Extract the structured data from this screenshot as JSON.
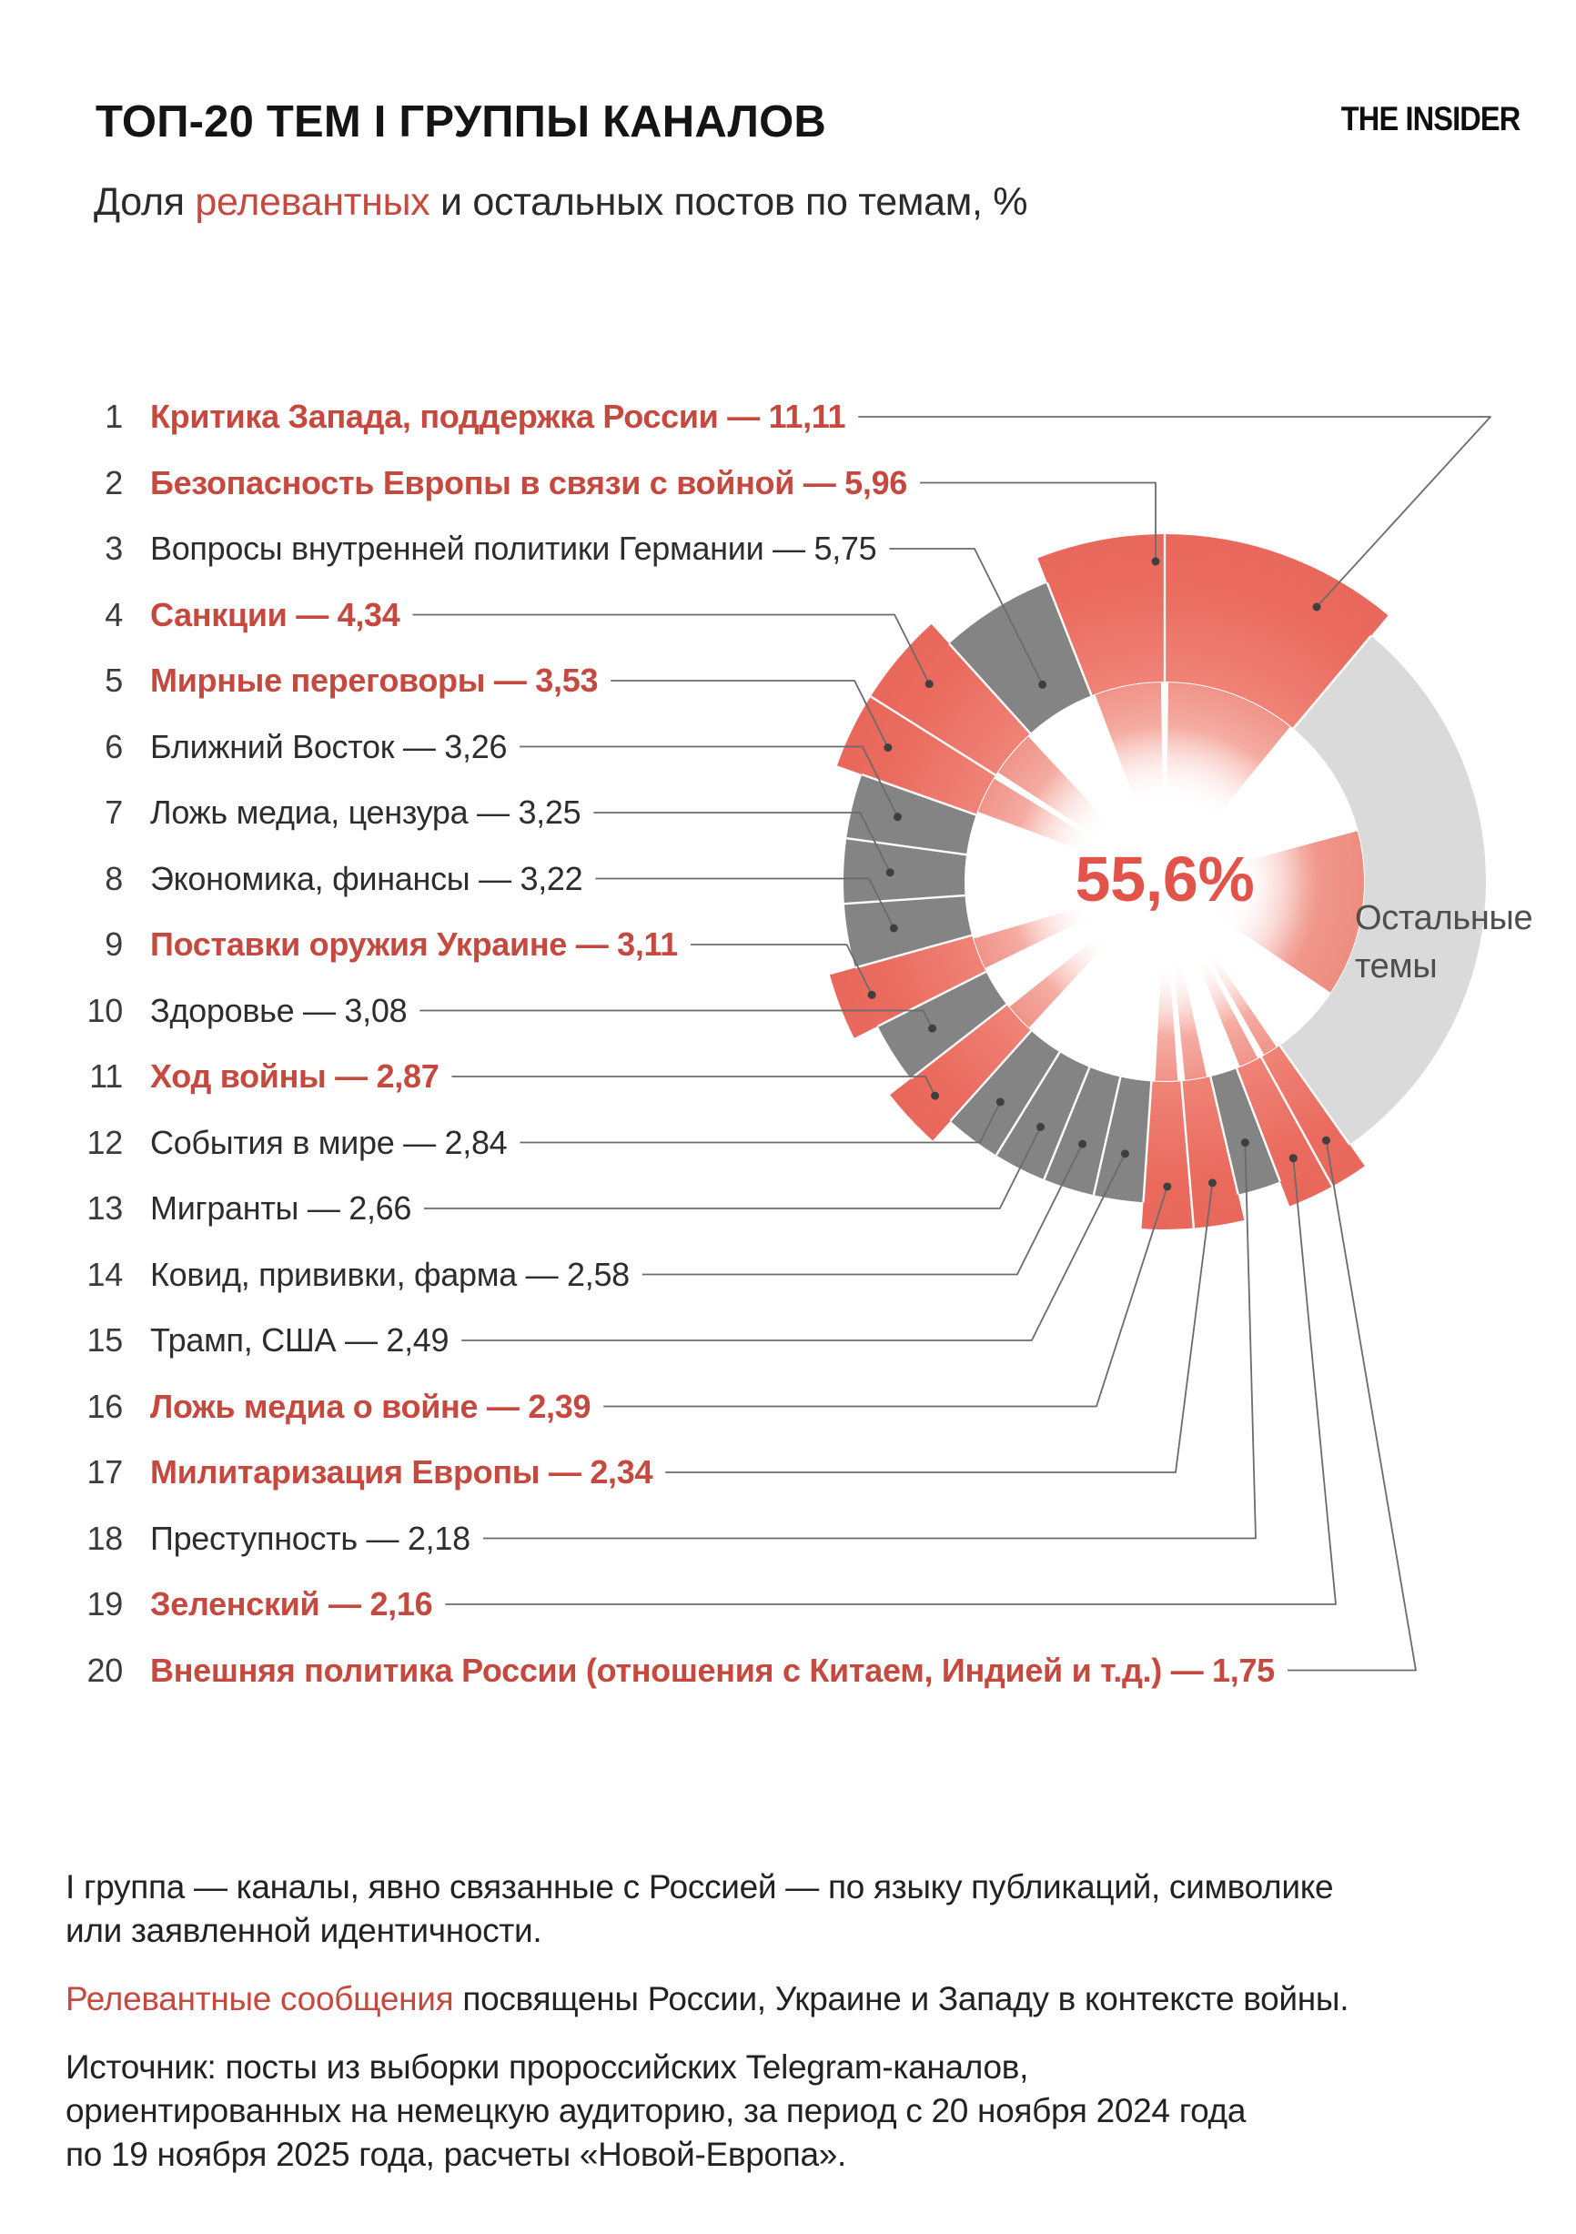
{
  "header": {
    "title": "ТОП-20 ТЕМ I ГРУППЫ КАНАЛОВ",
    "brand": "THE INSIDER",
    "subtitle": {
      "prefix": "Доля ",
      "highlight": "релевантных",
      "suffix": " и остальных постов по темам, %"
    }
  },
  "colors": {
    "relevant_red_text": "#c5493e",
    "center_label_red": "#e2544a",
    "sector_red": "#ea6a5e",
    "sector_gray": "#848484",
    "sector_rest_gray": "#dadadb",
    "leader_line": "#6b6b6b",
    "leader_dot": "#3f3f3f"
  },
  "chart_data": {
    "type": "pie",
    "variant": "donut-with-callouts",
    "title": "ТОП-20 ТЕМ I ГРУППЫ КАНАЛОВ",
    "subtitle": "Доля релевантных и остальных постов по темам, %",
    "center_label": "55,6%",
    "legend_position": "left-list-with-leader-lines",
    "rest_sector": {
      "label": "Остальные темы",
      "label_lines": [
        "Остальные",
        "темы"
      ]
    },
    "topics": [
      {
        "rank": 1,
        "label": "Критика Запада, поддержка России",
        "value": 11.11,
        "display": "11,11",
        "relevant": true
      },
      {
        "rank": 2,
        "label": "Безопасность Европы в связи с войной",
        "value": 5.96,
        "display": "5,96",
        "relevant": true
      },
      {
        "rank": 3,
        "label": "Вопросы внутренней политики Германии",
        "value": 5.75,
        "display": "5,75",
        "relevant": false
      },
      {
        "rank": 4,
        "label": "Санкции",
        "value": 4.34,
        "display": "4,34",
        "relevant": true
      },
      {
        "rank": 5,
        "label": "Мирные переговоры",
        "value": 3.53,
        "display": "3,53",
        "relevant": true
      },
      {
        "rank": 6,
        "label": "Ближний Восток",
        "value": 3.26,
        "display": "3,26",
        "relevant": false
      },
      {
        "rank": 7,
        "label": "Ложь медиа, цензура",
        "value": 3.25,
        "display": "3,25",
        "relevant": false
      },
      {
        "rank": 8,
        "label": "Экономика, финансы",
        "value": 3.22,
        "display": "3,22",
        "relevant": false
      },
      {
        "rank": 9,
        "label": "Поставки оружия Украине",
        "value": 3.11,
        "display": "3,11",
        "relevant": true
      },
      {
        "rank": 10,
        "label": "Здоровье",
        "value": 3.08,
        "display": "3,08",
        "relevant": false
      },
      {
        "rank": 11,
        "label": "Ход войны",
        "value": 2.87,
        "display": "2,87",
        "relevant": true
      },
      {
        "rank": 12,
        "label": "События в мире",
        "value": 2.84,
        "display": "2,84",
        "relevant": false
      },
      {
        "rank": 13,
        "label": "Мигранты",
        "value": 2.66,
        "display": "2,66",
        "relevant": false
      },
      {
        "rank": 14,
        "label": "Ковид, прививки, фарма",
        "value": 2.58,
        "display": "2,58",
        "relevant": false
      },
      {
        "rank": 15,
        "label": "Трамп, США",
        "value": 2.49,
        "display": "2,49",
        "relevant": false
      },
      {
        "rank": 16,
        "label": "Ложь медиа о войне",
        "value": 2.39,
        "display": "2,39",
        "relevant": true
      },
      {
        "rank": 17,
        "label": "Милитаризация Европы",
        "value": 2.34,
        "display": "2,34",
        "relevant": true
      },
      {
        "rank": 18,
        "label": "Преступность",
        "value": 2.18,
        "display": "2,18",
        "relevant": false
      },
      {
        "rank": 19,
        "label": "Зеленский",
        "value": 2.16,
        "display": "2,16",
        "relevant": true
      },
      {
        "rank": 20,
        "label": "Внешняя политика России (отношения с Китаем, Индией и т.д.)",
        "value": 1.75,
        "display": "1,75",
        "relevant": true
      }
    ],
    "separator": " — "
  },
  "footnotes": [
    {
      "segments": [
        {
          "text": "I группа — каналы, явно связанные с Россией — по языку публикаций, символике или заявленной идентичности.",
          "red": false
        }
      ]
    },
    {
      "segments": [
        {
          "text": "Релевантные сообщения",
          "red": true
        },
        {
          "text": " посвящены России, Украине и Западу в контексте войны.",
          "red": false
        }
      ]
    },
    {
      "segments": [
        {
          "text": "Источник: посты из выборки пророссийских Telegram-каналов, ориентированных на немецкую аудиторию, за период с 20 ноября 2024 года по 19 ноября 2025 года, расчеты «Новой-Европа».",
          "red": false
        }
      ]
    }
  ]
}
